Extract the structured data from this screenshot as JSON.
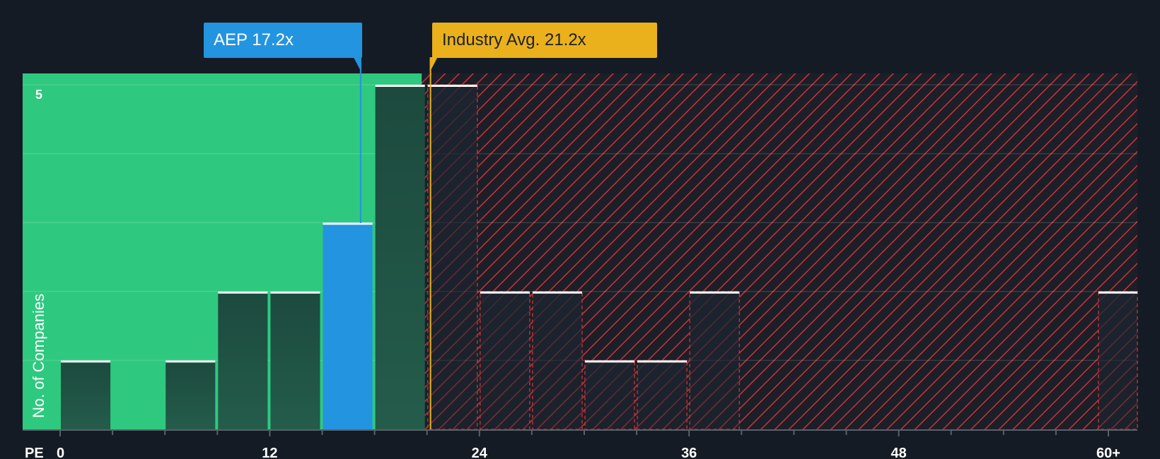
{
  "chart_data": {
    "type": "bar",
    "title": "",
    "xlabel": "PE",
    "ylabel": "No. of Companies",
    "x_ticks": [
      "0",
      "12",
      "24",
      "36",
      "48",
      "60+"
    ],
    "y_ticks": [
      "5"
    ],
    "xlim": [
      0,
      60
    ],
    "ylim": [
      0,
      5
    ],
    "bin_width": 3,
    "bins": [
      {
        "start": 0,
        "count": 1
      },
      {
        "start": 3,
        "count": 0
      },
      {
        "start": 6,
        "count": 1
      },
      {
        "start": 9,
        "count": 2
      },
      {
        "start": 12,
        "count": 2
      },
      {
        "start": 15,
        "count": 3
      },
      {
        "start": 18,
        "count": 5
      },
      {
        "start": 21,
        "count": 5
      },
      {
        "start": 24,
        "count": 2
      },
      {
        "start": 27,
        "count": 2
      },
      {
        "start": 30,
        "count": 1
      },
      {
        "start": 33,
        "count": 1
      },
      {
        "start": 36,
        "count": 2
      },
      {
        "start": 39,
        "count": 0
      },
      {
        "start": 42,
        "count": 0
      },
      {
        "start": 45,
        "count": 0
      },
      {
        "start": 48,
        "count": 0
      },
      {
        "start": 51,
        "count": 0
      },
      {
        "start": 54,
        "count": 0
      },
      {
        "start": 57,
        "count": 0
      },
      {
        "start": 60,
        "count": 2
      }
    ],
    "company": {
      "label": "AEP 17.2x",
      "value": 17.2
    },
    "industry_avg": {
      "label": "Industry Avg. 21.2x",
      "value": 21.2
    },
    "undervalued_below": 20.7
  },
  "colors": {
    "background": "#151b24",
    "green_zone": "#2ec97f",
    "red_hatch": "#c8343a",
    "company": "#2394e0",
    "industry": "#eab11c",
    "bar_dark": "#1f4a3d"
  }
}
